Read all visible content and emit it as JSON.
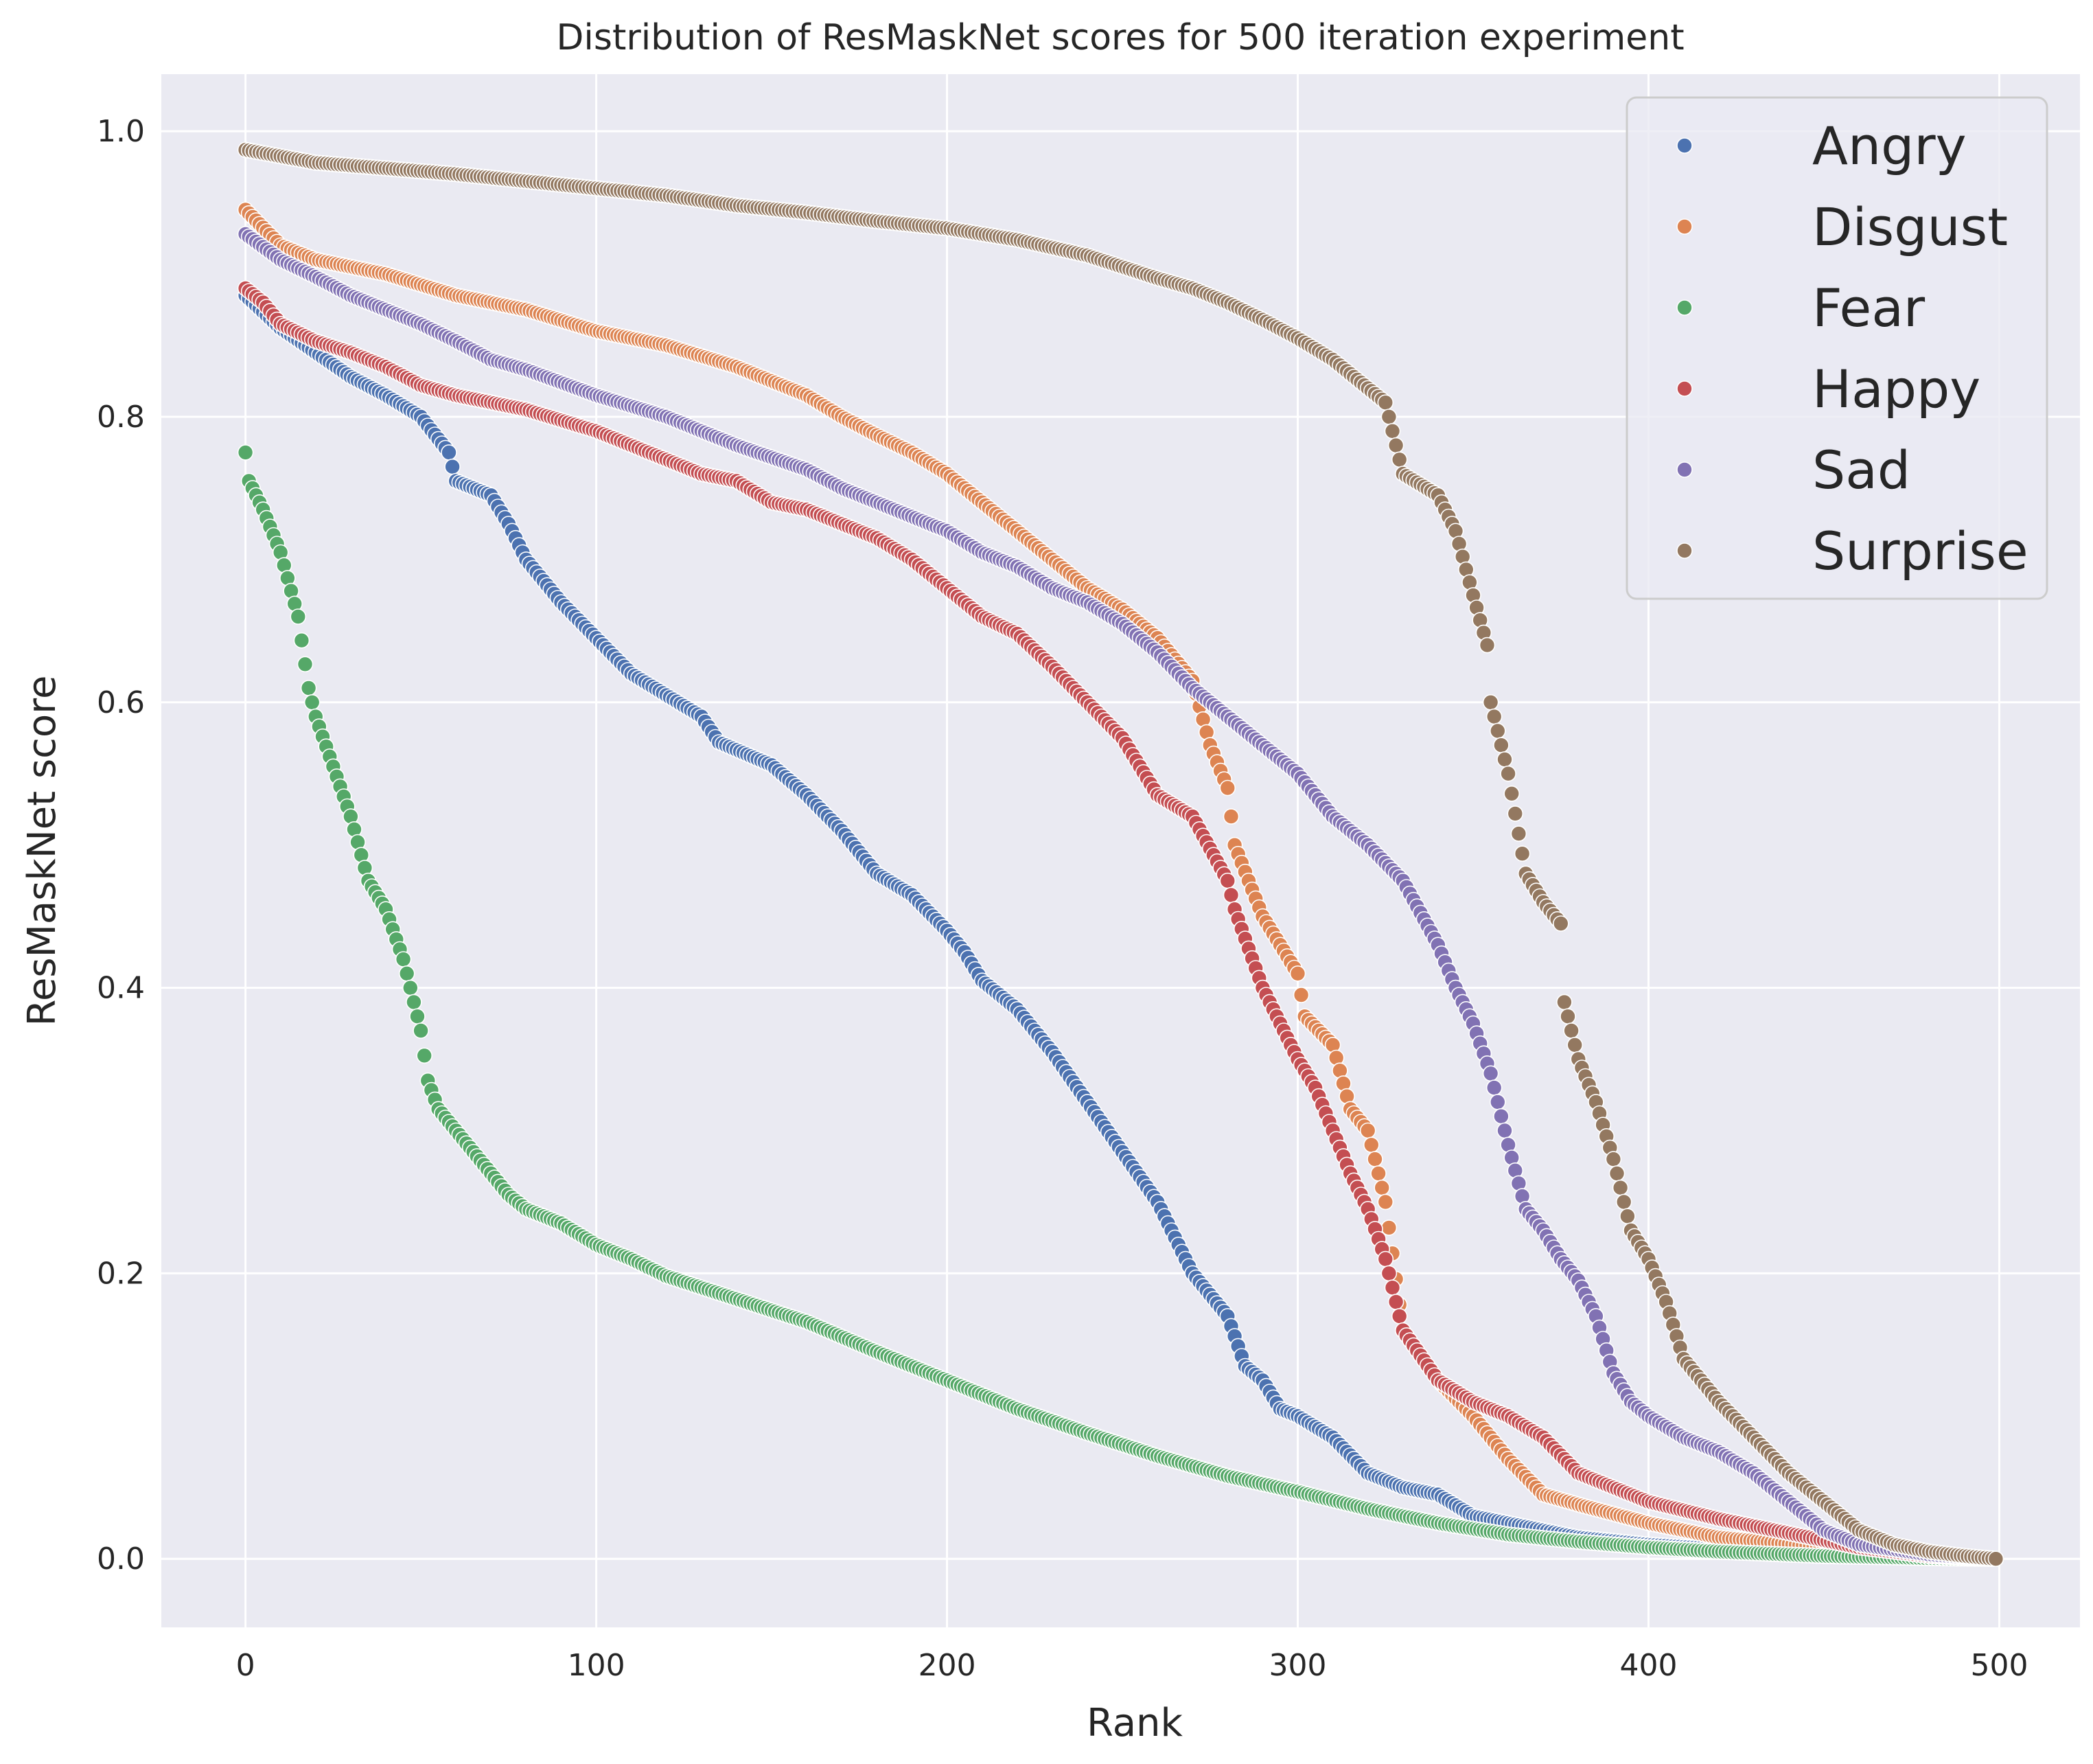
{
  "chart_data": {
    "type": "scatter",
    "title": "Distribution of ResMaskNet scores for 500 iteration experiment",
    "xlabel": "Rank",
    "ylabel": "ResMaskNet score",
    "xlim": [
      -24,
      523
    ],
    "ylim": [
      -0.048,
      1.04
    ],
    "xticks": [
      0,
      100,
      200,
      300,
      400,
      500
    ],
    "yticks": [
      0.0,
      0.2,
      0.4,
      0.6,
      0.8,
      1.0
    ],
    "xtick_labels": [
      "0",
      "100",
      "200",
      "300",
      "400",
      "500"
    ],
    "ytick_labels": [
      "0.0",
      "0.2",
      "0.4",
      "0.6",
      "0.8",
      "1.0"
    ],
    "grid": true,
    "legend_position": "top-right",
    "n_points_per_series": 500,
    "series": [
      {
        "name": "Angry",
        "color": "#4c72b0",
        "curve": [
          [
            0,
            0.885
          ],
          [
            10,
            0.862
          ],
          [
            20,
            0.845
          ],
          [
            30,
            0.828
          ],
          [
            40,
            0.815
          ],
          [
            50,
            0.8
          ],
          [
            58,
            0.775
          ],
          [
            60,
            0.755
          ],
          [
            70,
            0.745
          ],
          [
            75,
            0.725
          ],
          [
            80,
            0.7
          ],
          [
            90,
            0.67
          ],
          [
            100,
            0.645
          ],
          [
            110,
            0.62
          ],
          [
            120,
            0.605
          ],
          [
            130,
            0.59
          ],
          [
            135,
            0.572
          ],
          [
            150,
            0.556
          ],
          [
            160,
            0.535
          ],
          [
            170,
            0.51
          ],
          [
            180,
            0.48
          ],
          [
            190,
            0.465
          ],
          [
            200,
            0.44
          ],
          [
            205,
            0.425
          ],
          [
            210,
            0.405
          ],
          [
            220,
            0.385
          ],
          [
            230,
            0.355
          ],
          [
            240,
            0.32
          ],
          [
            250,
            0.285
          ],
          [
            260,
            0.25
          ],
          [
            265,
            0.225
          ],
          [
            270,
            0.2
          ],
          [
            280,
            0.17
          ],
          [
            285,
            0.135
          ],
          [
            290,
            0.125
          ],
          [
            295,
            0.105
          ],
          [
            300,
            0.1
          ],
          [
            310,
            0.085
          ],
          [
            320,
            0.06
          ],
          [
            330,
            0.05
          ],
          [
            340,
            0.045
          ],
          [
            350,
            0.03
          ],
          [
            360,
            0.025
          ],
          [
            370,
            0.02
          ],
          [
            380,
            0.015
          ],
          [
            400,
            0.01
          ],
          [
            430,
            0.005
          ],
          [
            460,
            0.002
          ],
          [
            499,
            0.0
          ]
        ]
      },
      {
        "name": "Disgust",
        "color": "#dd8452",
        "curve": [
          [
            0,
            0.945
          ],
          [
            10,
            0.92
          ],
          [
            20,
            0.91
          ],
          [
            40,
            0.9
          ],
          [
            60,
            0.885
          ],
          [
            80,
            0.875
          ],
          [
            100,
            0.86
          ],
          [
            120,
            0.85
          ],
          [
            140,
            0.835
          ],
          [
            160,
            0.815
          ],
          [
            170,
            0.8
          ],
          [
            180,
            0.787
          ],
          [
            190,
            0.775
          ],
          [
            200,
            0.76
          ],
          [
            210,
            0.74
          ],
          [
            220,
            0.72
          ],
          [
            230,
            0.7
          ],
          [
            240,
            0.68
          ],
          [
            250,
            0.665
          ],
          [
            260,
            0.645
          ],
          [
            270,
            0.615
          ],
          [
            275,
            0.57
          ],
          [
            280,
            0.54
          ],
          [
            282,
            0.5
          ],
          [
            290,
            0.45
          ],
          [
            300,
            0.41
          ],
          [
            302,
            0.38
          ],
          [
            310,
            0.36
          ],
          [
            315,
            0.315
          ],
          [
            320,
            0.3
          ],
          [
            325,
            0.25
          ],
          [
            330,
            0.16
          ],
          [
            340,
            0.125
          ],
          [
            350,
            0.1
          ],
          [
            360,
            0.07
          ],
          [
            370,
            0.045
          ],
          [
            380,
            0.038
          ],
          [
            400,
            0.025
          ],
          [
            420,
            0.015
          ],
          [
            450,
            0.008
          ],
          [
            480,
            0.003
          ],
          [
            499,
            0.0
          ]
        ]
      },
      {
        "name": "Fear",
        "color": "#55a868",
        "curve": [
          [
            0,
            0.775
          ],
          [
            1,
            0.755
          ],
          [
            5,
            0.735
          ],
          [
            10,
            0.705
          ],
          [
            15,
            0.66
          ],
          [
            18,
            0.61
          ],
          [
            20,
            0.59
          ],
          [
            25,
            0.555
          ],
          [
            30,
            0.52
          ],
          [
            35,
            0.475
          ],
          [
            40,
            0.455
          ],
          [
            45,
            0.42
          ],
          [
            48,
            0.39
          ],
          [
            50,
            0.37
          ],
          [
            52,
            0.335
          ],
          [
            55,
            0.315
          ],
          [
            60,
            0.3
          ],
          [
            70,
            0.27
          ],
          [
            75,
            0.255
          ],
          [
            80,
            0.245
          ],
          [
            90,
            0.235
          ],
          [
            100,
            0.22
          ],
          [
            110,
            0.21
          ],
          [
            120,
            0.198
          ],
          [
            140,
            0.182
          ],
          [
            160,
            0.166
          ],
          [
            180,
            0.145
          ],
          [
            200,
            0.125
          ],
          [
            220,
            0.105
          ],
          [
            240,
            0.088
          ],
          [
            260,
            0.072
          ],
          [
            280,
            0.058
          ],
          [
            300,
            0.047
          ],
          [
            320,
            0.035
          ],
          [
            340,
            0.025
          ],
          [
            360,
            0.017
          ],
          [
            380,
            0.012
          ],
          [
            400,
            0.008
          ],
          [
            420,
            0.005
          ],
          [
            450,
            0.002
          ],
          [
            480,
            0.0005
          ],
          [
            499,
            0.0
          ]
        ]
      },
      {
        "name": "Happy",
        "color": "#c44e52",
        "curve": [
          [
            0,
            0.89
          ],
          [
            5,
            0.88
          ],
          [
            10,
            0.865
          ],
          [
            20,
            0.853
          ],
          [
            30,
            0.845
          ],
          [
            40,
            0.835
          ],
          [
            50,
            0.822
          ],
          [
            60,
            0.815
          ],
          [
            80,
            0.805
          ],
          [
            100,
            0.79
          ],
          [
            110,
            0.78
          ],
          [
            120,
            0.77
          ],
          [
            130,
            0.76
          ],
          [
            140,
            0.755
          ],
          [
            150,
            0.74
          ],
          [
            160,
            0.735
          ],
          [
            170,
            0.725
          ],
          [
            180,
            0.715
          ],
          [
            190,
            0.7
          ],
          [
            200,
            0.68
          ],
          [
            210,
            0.66
          ],
          [
            220,
            0.648
          ],
          [
            230,
            0.625
          ],
          [
            240,
            0.6
          ],
          [
            250,
            0.575
          ],
          [
            255,
            0.555
          ],
          [
            260,
            0.535
          ],
          [
            270,
            0.52
          ],
          [
            280,
            0.475
          ],
          [
            282,
            0.455
          ],
          [
            290,
            0.4
          ],
          [
            300,
            0.35
          ],
          [
            305,
            0.33
          ],
          [
            310,
            0.3
          ],
          [
            315,
            0.27
          ],
          [
            320,
            0.245
          ],
          [
            325,
            0.21
          ],
          [
            330,
            0.16
          ],
          [
            340,
            0.125
          ],
          [
            350,
            0.11
          ],
          [
            360,
            0.1
          ],
          [
            370,
            0.085
          ],
          [
            380,
            0.06
          ],
          [
            390,
            0.05
          ],
          [
            400,
            0.04
          ],
          [
            420,
            0.028
          ],
          [
            440,
            0.018
          ],
          [
            460,
            0.008
          ],
          [
            480,
            0.002
          ],
          [
            499,
            0.0
          ]
        ]
      },
      {
        "name": "Sad",
        "color": "#8172b3",
        "curve": [
          [
            0,
            0.928
          ],
          [
            10,
            0.91
          ],
          [
            20,
            0.898
          ],
          [
            30,
            0.885
          ],
          [
            40,
            0.875
          ],
          [
            50,
            0.865
          ],
          [
            60,
            0.853
          ],
          [
            70,
            0.84
          ],
          [
            80,
            0.833
          ],
          [
            100,
            0.815
          ],
          [
            120,
            0.8
          ],
          [
            140,
            0.78
          ],
          [
            160,
            0.763
          ],
          [
            170,
            0.75
          ],
          [
            180,
            0.74
          ],
          [
            190,
            0.73
          ],
          [
            200,
            0.72
          ],
          [
            210,
            0.705
          ],
          [
            220,
            0.695
          ],
          [
            230,
            0.68
          ],
          [
            240,
            0.67
          ],
          [
            250,
            0.655
          ],
          [
            260,
            0.635
          ],
          [
            270,
            0.61
          ],
          [
            280,
            0.59
          ],
          [
            290,
            0.57
          ],
          [
            300,
            0.55
          ],
          [
            310,
            0.52
          ],
          [
            320,
            0.5
          ],
          [
            330,
            0.475
          ],
          [
            340,
            0.43
          ],
          [
            345,
            0.4
          ],
          [
            350,
            0.375
          ],
          [
            355,
            0.34
          ],
          [
            360,
            0.29
          ],
          [
            365,
            0.245
          ],
          [
            370,
            0.23
          ],
          [
            375,
            0.21
          ],
          [
            380,
            0.195
          ],
          [
            385,
            0.17
          ],
          [
            390,
            0.13
          ],
          [
            395,
            0.11
          ],
          [
            400,
            0.1
          ],
          [
            410,
            0.085
          ],
          [
            420,
            0.075
          ],
          [
            430,
            0.06
          ],
          [
            440,
            0.04
          ],
          [
            450,
            0.02
          ],
          [
            460,
            0.01
          ],
          [
            480,
            0.003
          ],
          [
            499,
            0.0
          ]
        ]
      },
      {
        "name": "Surprise",
        "color": "#937860",
        "curve": [
          [
            0,
            0.987
          ],
          [
            20,
            0.978
          ],
          [
            40,
            0.974
          ],
          [
            60,
            0.97
          ],
          [
            80,
            0.965
          ],
          [
            100,
            0.96
          ],
          [
            120,
            0.955
          ],
          [
            140,
            0.948
          ],
          [
            160,
            0.943
          ],
          [
            180,
            0.937
          ],
          [
            200,
            0.932
          ],
          [
            220,
            0.924
          ],
          [
            240,
            0.913
          ],
          [
            260,
            0.897
          ],
          [
            270,
            0.89
          ],
          [
            280,
            0.88
          ],
          [
            290,
            0.868
          ],
          [
            300,
            0.855
          ],
          [
            310,
            0.84
          ],
          [
            320,
            0.82
          ],
          [
            325,
            0.81
          ],
          [
            328,
            0.78
          ],
          [
            330,
            0.76
          ],
          [
            340,
            0.745
          ],
          [
            345,
            0.72
          ],
          [
            350,
            0.675
          ],
          [
            354,
            0.64
          ],
          [
            355,
            0.6
          ],
          [
            360,
            0.55
          ],
          [
            365,
            0.48
          ],
          [
            370,
            0.46
          ],
          [
            375,
            0.445
          ],
          [
            376,
            0.39
          ],
          [
            380,
            0.35
          ],
          [
            385,
            0.32
          ],
          [
            390,
            0.28
          ],
          [
            395,
            0.23
          ],
          [
            400,
            0.21
          ],
          [
            405,
            0.18
          ],
          [
            410,
            0.14
          ],
          [
            420,
            0.11
          ],
          [
            430,
            0.085
          ],
          [
            440,
            0.06
          ],
          [
            450,
            0.04
          ],
          [
            460,
            0.02
          ],
          [
            470,
            0.01
          ],
          [
            480,
            0.005
          ],
          [
            490,
            0.002
          ],
          [
            499,
            0.0
          ]
        ]
      }
    ]
  }
}
